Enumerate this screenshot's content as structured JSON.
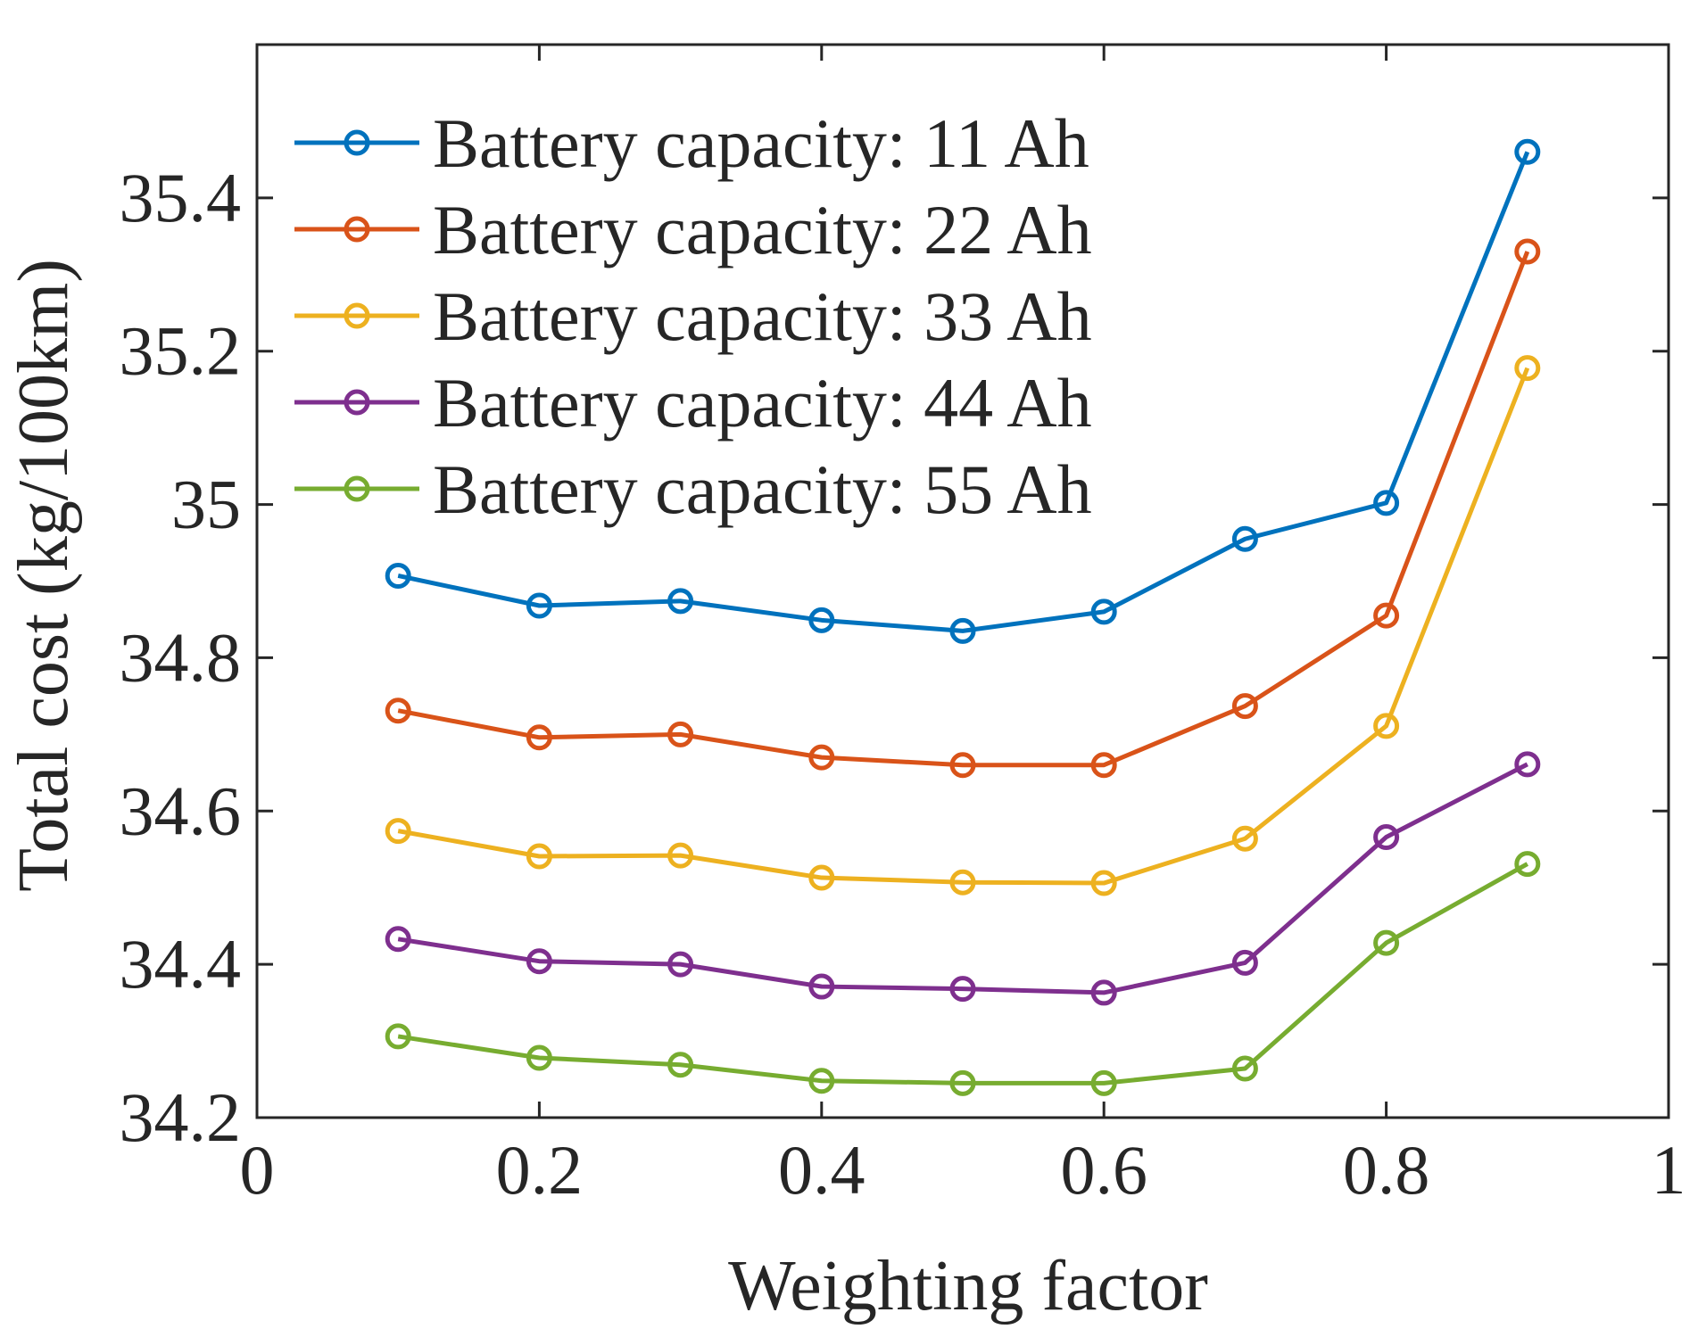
{
  "chart_data": {
    "type": "line",
    "title": "",
    "xlabel": "Weighting factor",
    "ylabel": "Total cost (kg/100km)",
    "xlim": [
      0,
      1
    ],
    "ylim": [
      34.2,
      35.6
    ],
    "xticks": [
      0,
      0.2,
      0.4,
      0.6,
      0.8,
      1
    ],
    "xtick_labels": [
      "0",
      "0.2",
      "0.4",
      "0.6",
      "0.8",
      "1"
    ],
    "yticks": [
      34.2,
      34.4,
      34.6,
      34.8,
      35.0,
      35.2,
      35.4
    ],
    "ytick_labels": [
      "34.2",
      "34.4",
      "34.6",
      "34.8",
      "35",
      "35.2",
      "35.4"
    ],
    "grid": false,
    "legend_position": "top-left",
    "x": [
      0.1,
      0.2,
      0.3,
      0.4,
      0.5,
      0.6,
      0.7,
      0.8,
      0.9
    ],
    "series": [
      {
        "name": "Battery capacity: 11 Ah",
        "color": "#0072BD",
        "values": [
          34.907,
          34.868,
          34.874,
          34.849,
          34.835,
          34.86,
          34.955,
          35.002,
          35.46
        ]
      },
      {
        "name": "Battery capacity: 22 Ah",
        "color": "#D95319",
        "values": [
          34.731,
          34.696,
          34.7,
          34.67,
          34.66,
          34.66,
          34.737,
          34.855,
          35.33
        ]
      },
      {
        "name": "Battery capacity: 33 Ah",
        "color": "#EDB120",
        "values": [
          34.574,
          34.541,
          34.542,
          34.513,
          34.507,
          34.506,
          34.564,
          34.711,
          35.178
        ]
      },
      {
        "name": "Battery capacity: 44 Ah",
        "color": "#7E2F8E",
        "values": [
          34.433,
          34.404,
          34.4,
          34.371,
          34.368,
          34.363,
          34.402,
          34.566,
          34.661
        ]
      },
      {
        "name": "Battery capacity: 55 Ah",
        "color": "#77AC30",
        "values": [
          34.306,
          34.278,
          34.269,
          34.248,
          34.245,
          34.245,
          34.264,
          34.428,
          34.531
        ]
      }
    ]
  }
}
